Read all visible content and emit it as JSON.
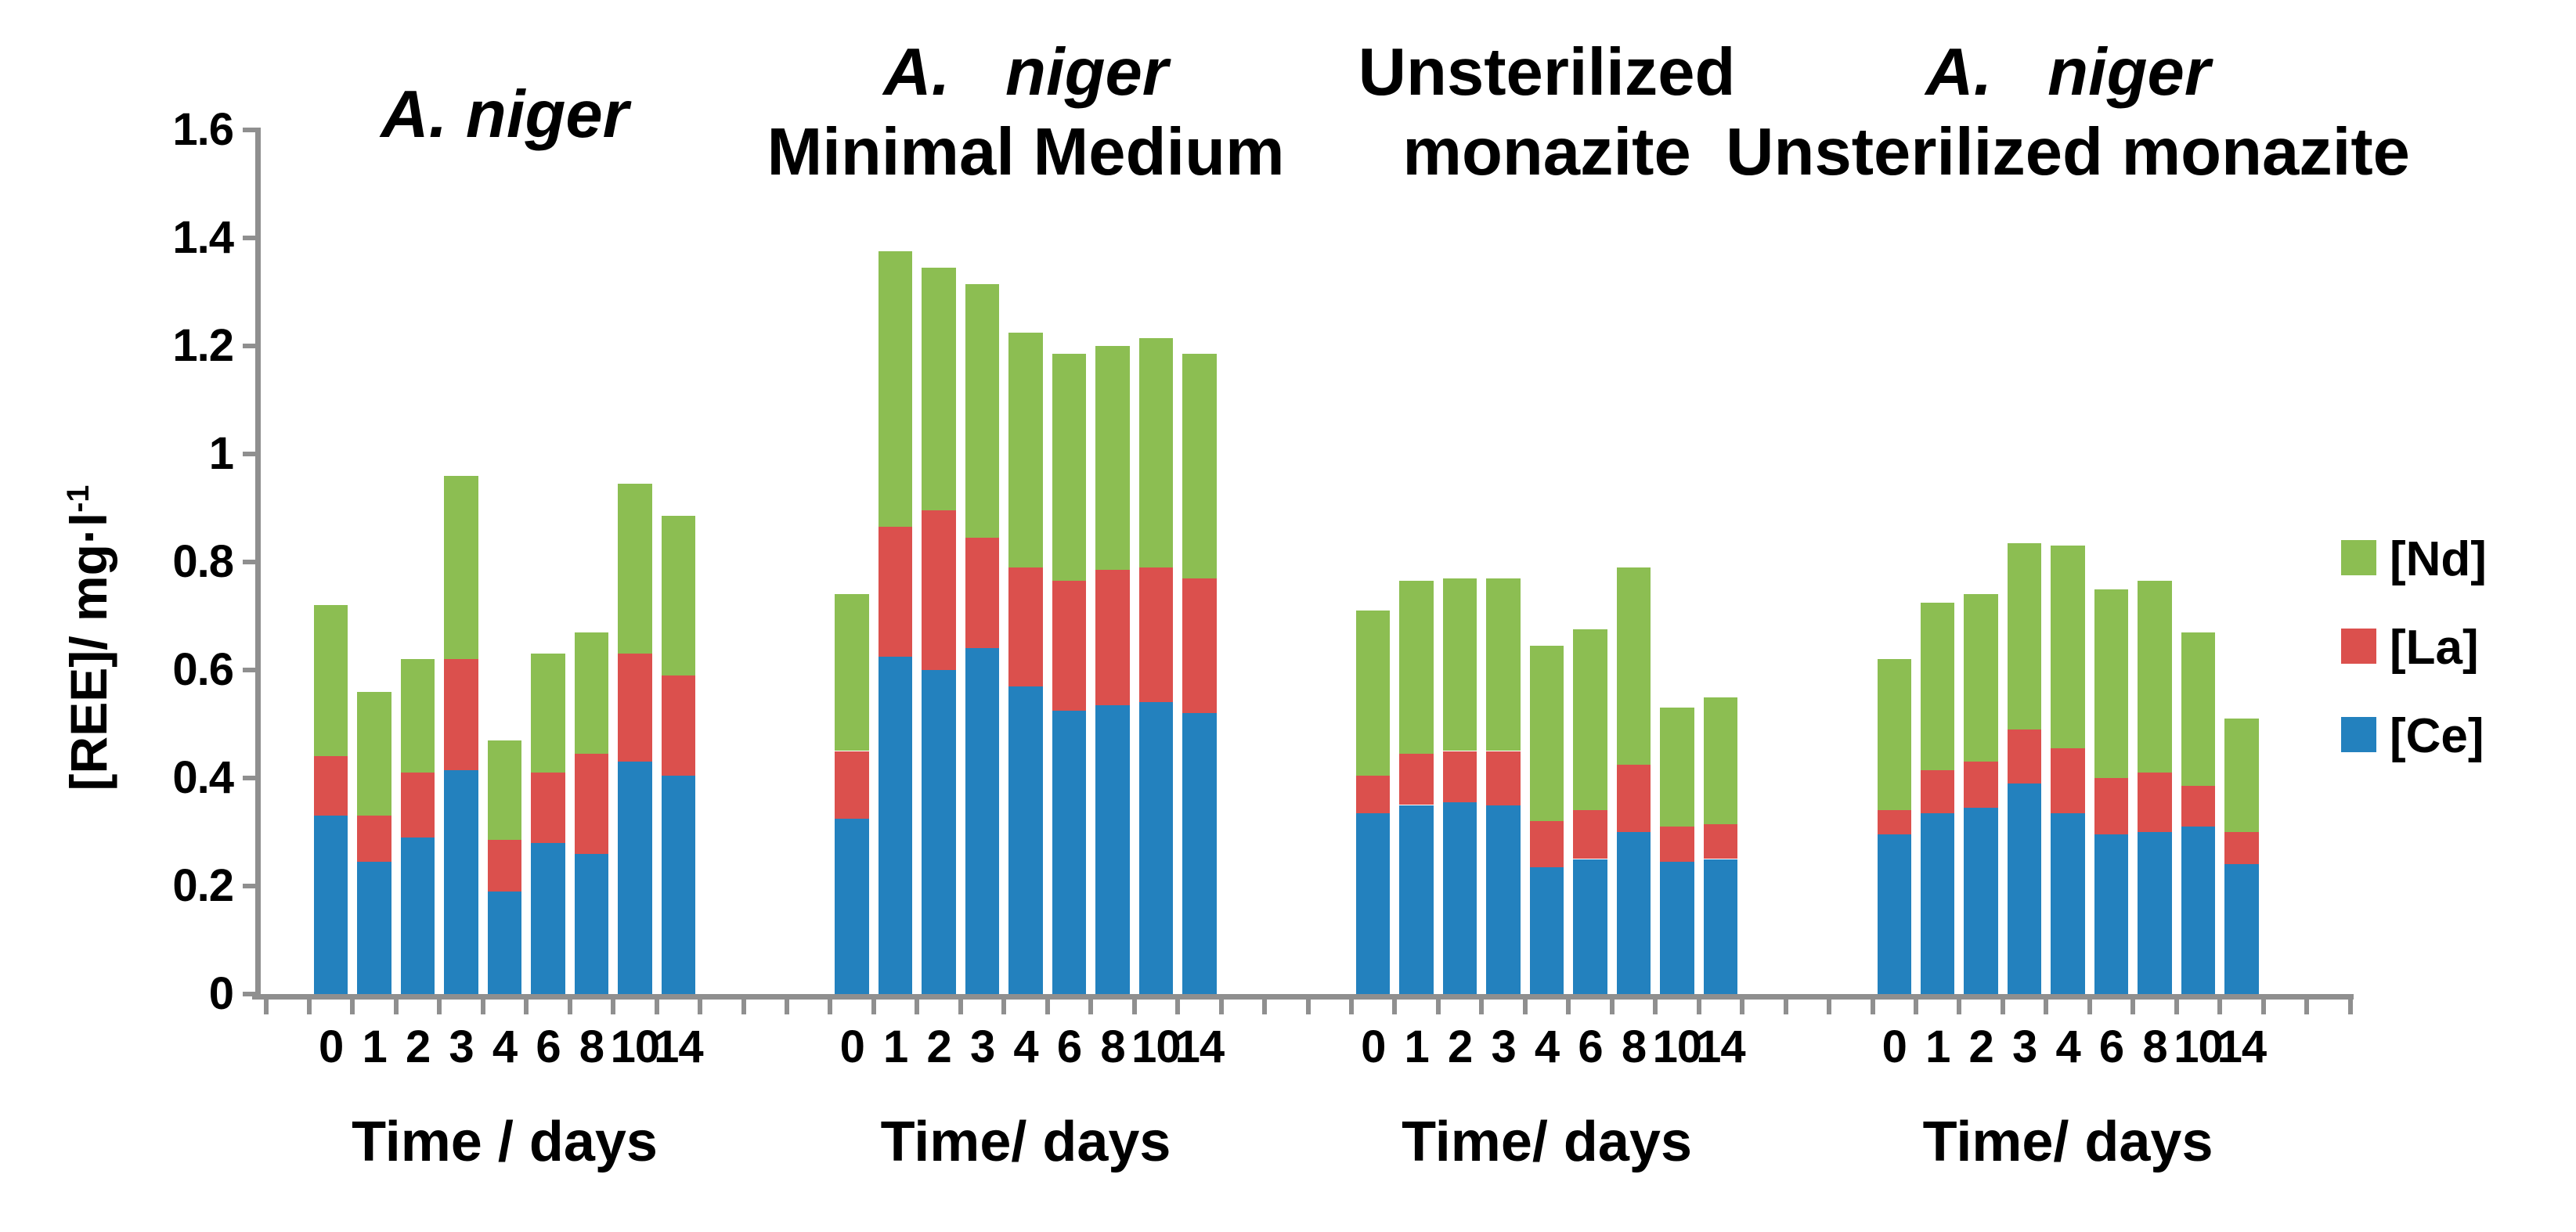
{
  "chart_data": {
    "type": "bar",
    "stacked": true,
    "orientation": "vertical",
    "grid": false,
    "categories": [
      "0",
      "1",
      "2",
      "3",
      "4",
      "6",
      "8",
      "10",
      "14"
    ],
    "ylim": [
      0,
      1.6
    ],
    "ytick_labels": [
      "0",
      "0.2",
      "0.4",
      "0.6",
      "0.8",
      "1",
      "1.2",
      "1.4",
      "1.6"
    ],
    "ytick_values": [
      0,
      0.2,
      0.4,
      0.6,
      0.8,
      1.0,
      1.2,
      1.4,
      1.6
    ],
    "ylabel_main": "[REE]/ mg·l",
    "ylabel_sup": "-1",
    "series_stack_order": [
      "Ce",
      "La",
      "Nd"
    ],
    "legend": {
      "position": "right",
      "items": [
        {
          "label": "[Nd]",
          "series": "Nd",
          "color": "#8CBE52"
        },
        {
          "label": "[La]",
          "series": "La",
          "color": "#DB504D"
        },
        {
          "label": "[Ce]",
          "series": "Ce",
          "color": "#2381BE"
        }
      ]
    },
    "panels": [
      {
        "title_lines": [
          {
            "text": "A. niger",
            "italic": true
          }
        ],
        "x_title": "Time / days",
        "series": {
          "Ce": [
            0.33,
            0.245,
            0.29,
            0.415,
            0.19,
            0.28,
            0.26,
            0.43,
            0.405
          ],
          "La": [
            0.11,
            0.085,
            0.12,
            0.205,
            0.095,
            0.13,
            0.185,
            0.2,
            0.185
          ],
          "Nd": [
            0.28,
            0.23,
            0.21,
            0.34,
            0.185,
            0.22,
            0.225,
            0.315,
            0.295
          ]
        }
      },
      {
        "title_lines": [
          {
            "text": "A.   niger",
            "italic": true
          },
          {
            "text": "Minimal Medium",
            "italic": false
          }
        ],
        "x_title": "Time/ days",
        "series": {
          "Ce": [
            0.325,
            0.625,
            0.6,
            0.64,
            0.57,
            0.525,
            0.535,
            0.54,
            0.52
          ],
          "La": [
            0.125,
            0.24,
            0.295,
            0.205,
            0.22,
            0.24,
            0.25,
            0.25,
            0.25
          ],
          "Nd": [
            0.29,
            0.51,
            0.45,
            0.47,
            0.435,
            0.42,
            0.415,
            0.425,
            0.415
          ]
        }
      },
      {
        "title_lines": [
          {
            "text": "Unsterilized",
            "italic": false
          },
          {
            "text": "monazite",
            "italic": false
          }
        ],
        "x_title": "Time/ days",
        "series": {
          "Ce": [
            0.335,
            0.35,
            0.355,
            0.35,
            0.235,
            0.25,
            0.3,
            0.245,
            0.25
          ],
          "La": [
            0.07,
            0.095,
            0.095,
            0.1,
            0.085,
            0.09,
            0.125,
            0.065,
            0.065
          ],
          "Nd": [
            0.305,
            0.32,
            0.32,
            0.32,
            0.325,
            0.335,
            0.365,
            0.22,
            0.235
          ]
        }
      },
      {
        "title_lines": [
          {
            "text": "A.   niger",
            "italic": true
          },
          {
            "text": "Unsterilized monazite",
            "italic": false
          }
        ],
        "x_title": "Time/ days",
        "series": {
          "Ce": [
            0.295,
            0.335,
            0.345,
            0.39,
            0.335,
            0.295,
            0.3,
            0.31,
            0.24
          ],
          "La": [
            0.045,
            0.08,
            0.085,
            0.1,
            0.12,
            0.105,
            0.11,
            0.075,
            0.06
          ],
          "Nd": [
            0.28,
            0.31,
            0.31,
            0.345,
            0.375,
            0.35,
            0.355,
            0.285,
            0.21
          ]
        }
      }
    ]
  }
}
